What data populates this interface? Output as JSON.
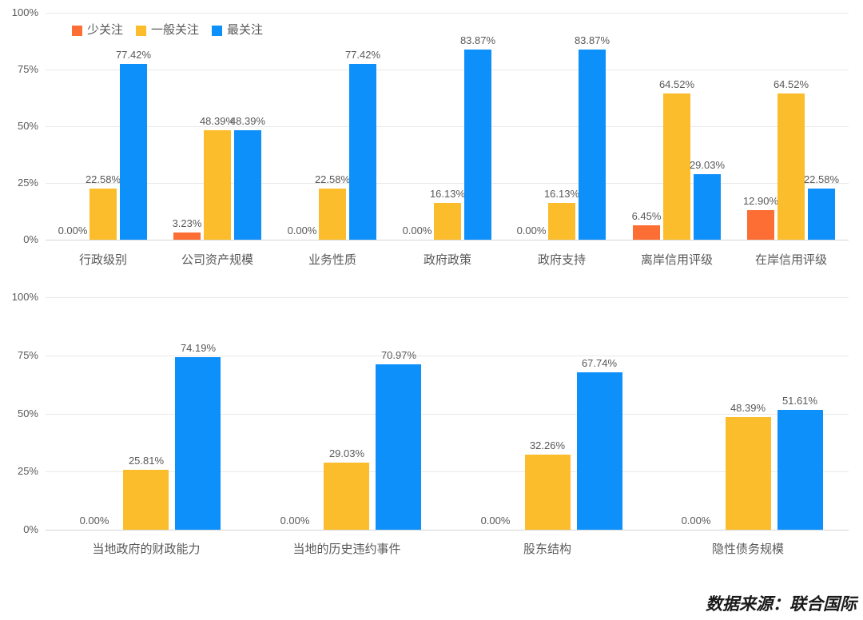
{
  "legend": {
    "items": [
      {
        "label": "少关注",
        "color": "#FC6E34"
      },
      {
        "label": "一般关注",
        "color": "#FBBD2B"
      },
      {
        "label": "最关注",
        "color": "#0E90FB"
      }
    ]
  },
  "footer": {
    "source_note": "数据来源：联合国际"
  },
  "colors": {
    "grid": "#E9E9E9",
    "axis_base": "#D5D5D5",
    "text": "#595959"
  },
  "chart_data": [
    {
      "type": "bar",
      "title": "",
      "xlabel": "",
      "ylabel": "",
      "ylim": [
        0,
        100
      ],
      "yticks": [
        "0%",
        "25%",
        "50%",
        "75%",
        "100%"
      ],
      "grid": true,
      "legend_position": "top-left",
      "value_label_suffix": "%",
      "categories": [
        "行政级别",
        "公司资产规模",
        "业务性质",
        "政府政策",
        "政府支持",
        "离岸信用评级",
        "在岸信用评级"
      ],
      "series": [
        {
          "name": "少关注",
          "color": "#FC6E34",
          "values": [
            0.0,
            3.23,
            0.0,
            0.0,
            0.0,
            6.45,
            12.9
          ]
        },
        {
          "name": "一般关注",
          "color": "#FBBD2B",
          "values": [
            22.58,
            48.39,
            22.58,
            16.13,
            16.13,
            64.52,
            64.52
          ]
        },
        {
          "name": "最关注",
          "color": "#0E90FB",
          "values": [
            77.42,
            48.39,
            77.42,
            83.87,
            83.87,
            29.03,
            22.58
          ]
        }
      ]
    },
    {
      "type": "bar",
      "title": "",
      "xlabel": "",
      "ylabel": "",
      "ylim": [
        0,
        100
      ],
      "yticks": [
        "0%",
        "25%",
        "50%",
        "75%",
        "100%"
      ],
      "grid": true,
      "legend_position": "none",
      "value_label_suffix": "%",
      "categories": [
        "当地政府的财政能力",
        "当地的历史违约事件",
        "股东结构",
        "隐性债务规模"
      ],
      "series": [
        {
          "name": "少关注",
          "color": "#FC6E34",
          "values": [
            0.0,
            0.0,
            0.0,
            0.0
          ]
        },
        {
          "name": "一般关注",
          "color": "#FBBD2B",
          "values": [
            25.81,
            29.03,
            32.26,
            48.39
          ]
        },
        {
          "name": "最关注",
          "color": "#0E90FB",
          "values": [
            74.19,
            70.97,
            67.74,
            51.61
          ]
        }
      ]
    }
  ]
}
